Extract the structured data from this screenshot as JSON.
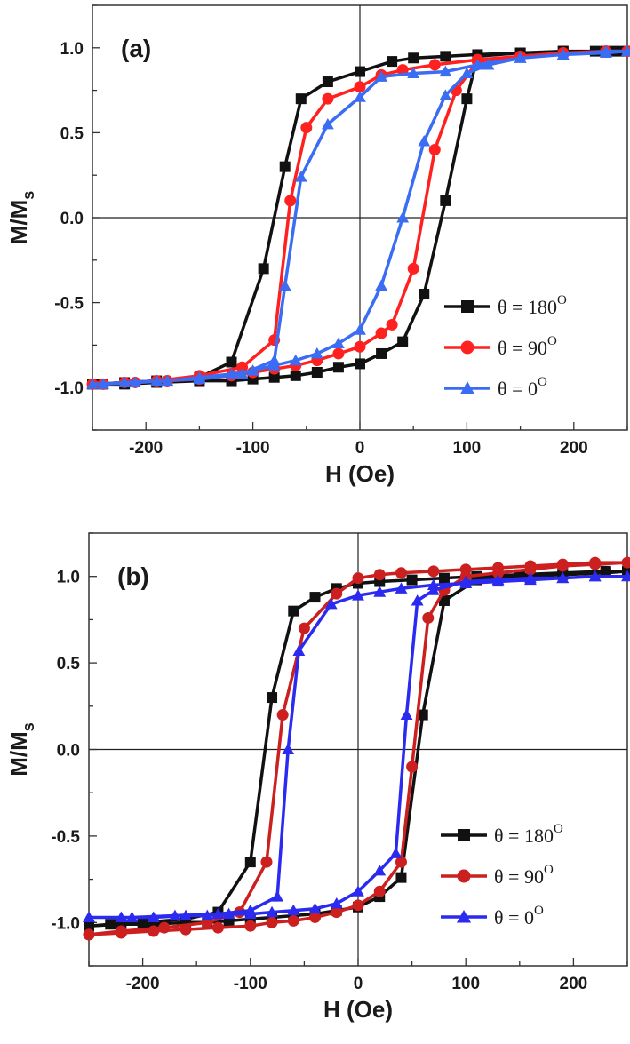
{
  "chart_data": [
    {
      "type": "line",
      "panel_label": "(a)",
      "xlabel": "H (Oe)",
      "ylabel": "M/M",
      "ylabel_sub": "s",
      "xlim": [
        -250,
        250
      ],
      "ylim": [
        -1.25,
        1.25
      ],
      "xticks": [
        -200,
        -100,
        0,
        100,
        200
      ],
      "yticks": [
        -1.0,
        -0.5,
        0.0,
        0.5,
        1.0
      ],
      "legend_position": "bottom-right",
      "series": [
        {
          "name": "θ = 180",
          "name_sup": "O",
          "color": "#111111",
          "marker": "square",
          "x": [
            -240,
            -220,
            -190,
            -150,
            -120,
            -100,
            -80,
            -60,
            -40,
            -20,
            0,
            20,
            40,
            60,
            80,
            100,
            110,
            150,
            190,
            230,
            250,
            240,
            220,
            190,
            150,
            110,
            80,
            50,
            30,
            0,
            -30,
            -55,
            -70,
            -90,
            -120,
            -150,
            -190,
            -220,
            -250
          ],
          "y": [
            -0.98,
            -0.98,
            -0.97,
            -0.96,
            -0.96,
            -0.95,
            -0.94,
            -0.93,
            -0.91,
            -0.88,
            -0.86,
            -0.8,
            -0.73,
            -0.45,
            0.1,
            0.7,
            0.95,
            0.97,
            0.98,
            0.98,
            0.98,
            0.98,
            0.98,
            0.98,
            0.97,
            0.96,
            0.95,
            0.94,
            0.92,
            0.86,
            0.8,
            0.7,
            0.3,
            -0.3,
            -0.85,
            -0.94,
            -0.96,
            -0.97,
            -0.98
          ]
        },
        {
          "name": "θ = 90",
          "name_sup": "O",
          "color": "#ff2020",
          "marker": "circle",
          "x": [
            -240,
            -210,
            -180,
            -150,
            -120,
            -100,
            -80,
            -60,
            -40,
            -20,
            0,
            20,
            30,
            50,
            70,
            90,
            110,
            150,
            190,
            230,
            250,
            230,
            190,
            150,
            110,
            70,
            40,
            20,
            0,
            -30,
            -50,
            -65,
            -80,
            -110,
            -150,
            -190,
            -220,
            -250
          ],
          "y": [
            -0.98,
            -0.97,
            -0.96,
            -0.95,
            -0.93,
            -0.91,
            -0.89,
            -0.87,
            -0.84,
            -0.8,
            -0.76,
            -0.68,
            -0.63,
            -0.3,
            0.4,
            0.75,
            0.92,
            0.95,
            0.97,
            0.98,
            0.98,
            0.98,
            0.97,
            0.95,
            0.93,
            0.9,
            0.87,
            0.84,
            0.77,
            0.7,
            0.53,
            0.1,
            -0.72,
            -0.88,
            -0.93,
            -0.96,
            -0.97,
            -0.98
          ]
        },
        {
          "name": "θ = 0",
          "name_sup": "O",
          "color": "#3a6cf4",
          "marker": "triangle",
          "x": [
            -240,
            -210,
            -180,
            -150,
            -120,
            -100,
            -80,
            -60,
            -40,
            -20,
            0,
            20,
            40,
            60,
            80,
            100,
            120,
            150,
            190,
            230,
            250,
            230,
            190,
            150,
            110,
            80,
            50,
            20,
            0,
            -30,
            -55,
            -70,
            -80,
            -110,
            -150,
            -190,
            -220,
            -250
          ],
          "y": [
            -0.98,
            -0.97,
            -0.96,
            -0.94,
            -0.92,
            -0.9,
            -0.87,
            -0.84,
            -0.8,
            -0.74,
            -0.66,
            -0.4,
            0.0,
            0.45,
            0.72,
            0.85,
            0.9,
            0.94,
            0.96,
            0.97,
            0.98,
            0.98,
            0.96,
            0.94,
            0.9,
            0.86,
            0.85,
            0.83,
            0.71,
            0.55,
            0.24,
            -0.4,
            -0.84,
            -0.92,
            -0.95,
            -0.96,
            -0.97,
            -0.98
          ]
        }
      ]
    },
    {
      "type": "line",
      "panel_label": "(b)",
      "xlabel": "H (Oe)",
      "ylabel": "M/M",
      "ylabel_sub": "s",
      "xlim": [
        -250,
        250
      ],
      "ylim": [
        -1.25,
        1.25
      ],
      "xticks": [
        -200,
        -100,
        0,
        100,
        200
      ],
      "yticks": [
        -1.0,
        -0.5,
        0.0,
        0.5,
        1.0
      ],
      "legend_position": "bottom-right",
      "series": [
        {
          "name": "θ = 180",
          "name_sup": "O",
          "color": "#111111",
          "marker": "square",
          "x": [
            -250,
            -220,
            -190,
            -160,
            -140,
            -120,
            -100,
            -80,
            -60,
            -40,
            -20,
            0,
            20,
            40,
            60,
            80,
            110,
            150,
            190,
            230,
            250,
            230,
            190,
            150,
            110,
            80,
            50,
            20,
            0,
            -20,
            -40,
            -60,
            -80,
            -100,
            -130,
            -160,
            -200,
            -230,
            -250
          ],
          "y": [
            -1.02,
            -1.01,
            -1.01,
            -1.0,
            -1.0,
            -0.99,
            -0.98,
            -0.97,
            -0.96,
            -0.95,
            -0.93,
            -0.91,
            -0.85,
            -0.74,
            0.2,
            0.86,
            0.98,
            1.0,
            1.01,
            1.02,
            1.03,
            1.03,
            1.02,
            1.01,
            1.0,
            0.99,
            0.98,
            0.97,
            0.96,
            0.93,
            0.88,
            0.8,
            0.3,
            -0.65,
            -0.94,
            -0.98,
            -1.0,
            -1.01,
            -1.02
          ]
        },
        {
          "name": "θ = 90",
          "name_sup": "O",
          "color": "#cc2020",
          "marker": "circle",
          "x": [
            -250,
            -220,
            -190,
            -160,
            -130,
            -100,
            -80,
            -60,
            -40,
            -20,
            0,
            20,
            40,
            50,
            65,
            80,
            100,
            130,
            160,
            190,
            220,
            250,
            220,
            190,
            160,
            130,
            100,
            70,
            40,
            20,
            0,
            -20,
            -50,
            -70,
            -85,
            -110,
            -140,
            -180,
            -220,
            -250
          ],
          "y": [
            -1.07,
            -1.06,
            -1.05,
            -1.04,
            -1.03,
            -1.02,
            -1.0,
            -0.99,
            -0.97,
            -0.94,
            -0.9,
            -0.82,
            -0.65,
            -0.1,
            0.76,
            0.92,
            1.0,
            1.02,
            1.04,
            1.06,
            1.07,
            1.08,
            1.08,
            1.07,
            1.06,
            1.05,
            1.04,
            1.03,
            1.02,
            1.01,
            0.99,
            0.9,
            0.7,
            0.2,
            -0.65,
            -0.94,
            -1.0,
            -1.03,
            -1.05,
            -1.07
          ]
        },
        {
          "name": "θ = 0",
          "name_sup": "O",
          "color": "#2a2af0",
          "marker": "triangle",
          "x": [
            -250,
            -220,
            -190,
            -160,
            -140,
            -120,
            -100,
            -80,
            -60,
            -40,
            -20,
            0,
            20,
            35,
            45,
            55,
            70,
            100,
            130,
            160,
            190,
            220,
            250,
            220,
            190,
            160,
            130,
            100,
            70,
            40,
            20,
            0,
            -25,
            -55,
            -65,
            -75,
            -100,
            -130,
            -170,
            -210,
            -250
          ],
          "y": [
            -0.97,
            -0.97,
            -0.97,
            -0.96,
            -0.96,
            -0.95,
            -0.95,
            -0.94,
            -0.93,
            -0.92,
            -0.89,
            -0.82,
            -0.7,
            -0.6,
            0.2,
            0.86,
            0.92,
            0.97,
            0.98,
            0.99,
            0.99,
            1.0,
            1.0,
            1.0,
            0.99,
            0.98,
            0.97,
            0.96,
            0.95,
            0.93,
            0.91,
            0.89,
            0.84,
            0.57,
            0.0,
            -0.85,
            -0.93,
            -0.95,
            -0.96,
            -0.97,
            -0.97
          ]
        }
      ]
    }
  ]
}
